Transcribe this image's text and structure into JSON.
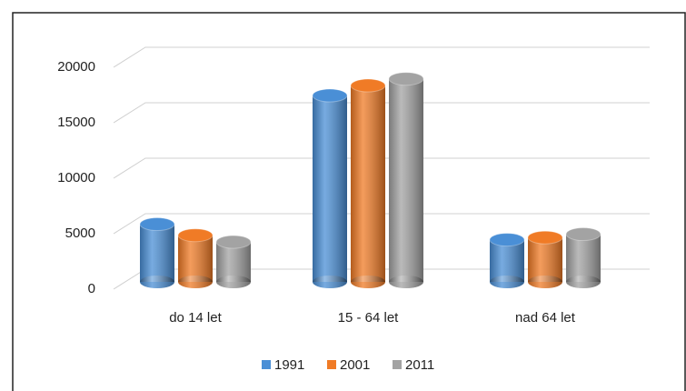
{
  "chart_data": {
    "type": "bar",
    "categories": [
      "do 14 let",
      "15 - 64 let",
      "nad 64 let"
    ],
    "series": [
      {
        "name": "1991",
        "color": "#4a8fd6",
        "values": [
          5200,
          16800,
          3800
        ]
      },
      {
        "name": "2001",
        "color": "#f07b26",
        "values": [
          4200,
          17700,
          4000
        ]
      },
      {
        "name": "2011",
        "color": "#a3a3a3",
        "values": [
          3600,
          18300,
          4300
        ]
      }
    ],
    "ylim": [
      0,
      20000
    ],
    "yticks": [
      0,
      5000,
      10000,
      15000,
      20000
    ],
    "grid": true,
    "legend": "bottom"
  }
}
